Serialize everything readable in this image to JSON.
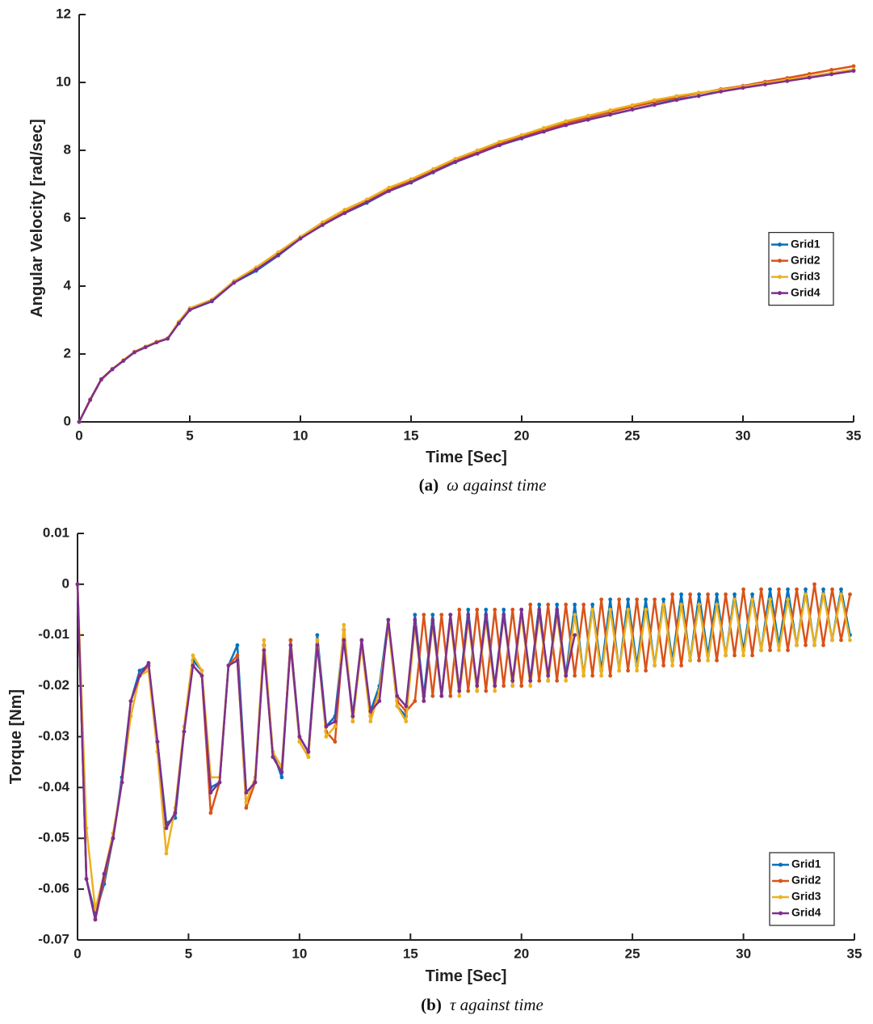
{
  "chart_data": [
    {
      "type": "line",
      "xlabel": "Time [Sec]",
      "ylabel": "Angular Velocity [rad/sec]",
      "caption_label": "(a)",
      "caption": "ω  against time",
      "xlim": [
        0,
        35
      ],
      "ylim": [
        0,
        12
      ],
      "xticks": [
        0,
        5,
        10,
        15,
        20,
        25,
        30,
        35
      ],
      "yticks": [
        0,
        2,
        4,
        6,
        8,
        10,
        12
      ],
      "grid": false,
      "legend": "center right",
      "x": [
        0,
        0.5,
        1,
        1.5,
        2,
        2.5,
        3,
        3.5,
        4,
        4.5,
        5,
        6,
        7,
        8,
        9,
        10,
        11,
        12,
        13,
        14,
        15,
        16,
        17,
        18,
        19,
        20,
        21,
        22,
        23,
        24,
        25,
        26,
        27,
        28,
        29,
        30,
        31,
        32,
        33,
        34,
        35
      ],
      "series": [
        {
          "name": "Grid1",
          "color": "#0072BD",
          "values": [
            0,
            0.65,
            1.25,
            1.55,
            1.8,
            2.05,
            2.2,
            2.35,
            2.45,
            2.9,
            3.3,
            3.55,
            4.1,
            4.45,
            4.9,
            5.4,
            5.8,
            6.15,
            6.45,
            6.8,
            7.05,
            7.35,
            7.65,
            7.9,
            8.15,
            8.35,
            8.55,
            8.75,
            8.9,
            9.05,
            9.2,
            9.35,
            9.5,
            9.6,
            9.75,
            9.85,
            9.95,
            10.05,
            10.15,
            10.25,
            10.35
          ]
        },
        {
          "name": "Grid2",
          "color": "#D95319",
          "values": [
            0,
            0.66,
            1.26,
            1.56,
            1.8,
            2.06,
            2.2,
            2.36,
            2.46,
            2.92,
            3.32,
            3.58,
            4.12,
            4.5,
            4.95,
            5.42,
            5.82,
            6.18,
            6.5,
            6.85,
            7.1,
            7.4,
            7.7,
            7.95,
            8.2,
            8.4,
            8.6,
            8.8,
            8.96,
            9.12,
            9.28,
            9.42,
            9.56,
            9.68,
            9.8,
            9.9,
            10.02,
            10.13,
            10.25,
            10.37,
            10.48
          ]
        },
        {
          "name": "Grid3",
          "color": "#EDB120",
          "values": [
            0,
            0.64,
            1.24,
            1.55,
            1.82,
            2.07,
            2.22,
            2.36,
            2.46,
            2.95,
            3.35,
            3.6,
            4.15,
            4.55,
            5.0,
            5.45,
            5.88,
            6.25,
            6.55,
            6.9,
            7.15,
            7.45,
            7.75,
            8.0,
            8.25,
            8.45,
            8.66,
            8.86,
            9.02,
            9.18,
            9.33,
            9.48,
            9.6,
            9.7,
            9.78,
            9.88,
            9.98,
            10.08,
            10.18,
            10.28,
            10.38
          ]
        },
        {
          "name": "Grid4",
          "color": "#7E2F8E",
          "values": [
            0,
            0.65,
            1.25,
            1.55,
            1.8,
            2.05,
            2.2,
            2.34,
            2.45,
            2.9,
            3.3,
            3.56,
            4.1,
            4.48,
            4.92,
            5.4,
            5.8,
            6.15,
            6.47,
            6.8,
            7.06,
            7.36,
            7.66,
            7.9,
            8.15,
            8.36,
            8.55,
            8.74,
            8.9,
            9.05,
            9.2,
            9.34,
            9.48,
            9.6,
            9.73,
            9.84,
            9.94,
            10.04,
            10.14,
            10.24,
            10.34
          ]
        }
      ]
    },
    {
      "type": "line",
      "xlabel": "Time [Sec]",
      "ylabel": "Torque [Nm]",
      "caption_label": "(b)",
      "caption": "τ  against time",
      "xlim": [
        0,
        35
      ],
      "ylim": [
        -0.07,
        0.01
      ],
      "xticks": [
        0,
        5,
        10,
        15,
        20,
        25,
        30,
        35
      ],
      "yticks": [
        -0.07,
        -0.06,
        -0.05,
        -0.04,
        -0.03,
        -0.02,
        -0.01,
        0,
        0.01
      ],
      "grid": false,
      "legend": "lower right",
      "x": [
        0,
        0.4,
        0.8,
        1.2,
        1.6,
        2,
        2.4,
        2.8,
        3.2,
        3.6,
        4,
        4.4,
        4.8,
        5.2,
        5.6,
        6,
        6.4,
        6.8,
        7.2,
        7.6,
        8,
        8.4,
        8.8,
        9.2,
        9.6,
        10,
        10.4,
        10.8,
        11.2,
        11.6,
        12,
        12.4,
        12.8,
        13.2,
        13.6,
        14,
        14.4,
        14.8,
        15.2,
        15.6,
        16,
        16.4,
        16.8,
        17.2,
        17.6,
        18,
        18.4,
        18.8,
        19.2,
        19.6,
        20,
        20.4,
        20.8,
        21.2,
        21.6,
        22,
        22.4,
        22.8,
        23.2,
        23.6,
        24,
        24.4,
        24.8,
        25.2,
        25.6,
        26,
        26.4,
        26.8,
        27.2,
        27.6,
        28,
        28.4,
        28.8,
        29.2,
        29.6,
        30,
        30.4,
        30.8,
        31.2,
        31.6,
        32,
        32.4,
        32.8,
        33.2,
        33.6,
        34,
        34.4,
        34.8
      ],
      "series": [
        {
          "name": "Grid1",
          "color": "#0072BD",
          "values": [
            0,
            -0.058,
            -0.065,
            -0.059,
            -0.05,
            -0.038,
            -0.023,
            -0.017,
            -0.016,
            -0.031,
            -0.047,
            -0.046,
            -0.029,
            -0.015,
            -0.017,
            -0.04,
            -0.039,
            -0.016,
            -0.012,
            -0.041,
            -0.039,
            -0.012,
            -0.033,
            -0.038,
            -0.011,
            -0.03,
            -0.033,
            -0.01,
            -0.028,
            -0.026,
            -0.009,
            -0.026,
            -0.011,
            -0.025,
            -0.02,
            -0.007,
            -0.024,
            -0.026,
            -0.006,
            -0.022,
            -0.006,
            -0.022,
            -0.006,
            -0.021,
            -0.005,
            -0.021,
            -0.005,
            -0.02,
            -0.005,
            -0.02,
            -0.005,
            -0.019,
            -0.004,
            -0.019,
            -0.004,
            -0.018,
            -0.004,
            -0.018,
            -0.004,
            -0.017,
            -0.003,
            -0.017,
            -0.003,
            -0.016,
            -0.003,
            -0.016,
            -0.003,
            -0.015,
            -0.002,
            -0.015,
            -0.002,
            -0.014,
            -0.002,
            -0.014,
            -0.002,
            -0.013,
            -0.002,
            -0.013,
            -0.001,
            -0.012,
            -0.001,
            -0.012,
            -0.001,
            -0.012,
            -0.001,
            -0.011,
            -0.001,
            -0.01
          ]
        },
        {
          "name": "Grid2",
          "color": "#D95319",
          "values": [
            0,
            -0.058,
            -0.066,
            -0.058,
            -0.05,
            -0.039,
            -0.023,
            -0.018,
            -0.016,
            -0.031,
            -0.048,
            -0.045,
            -0.029,
            -0.016,
            -0.018,
            -0.045,
            -0.039,
            -0.016,
            -0.014,
            -0.044,
            -0.039,
            -0.012,
            -0.034,
            -0.037,
            -0.011,
            -0.031,
            -0.034,
            -0.011,
            -0.029,
            -0.031,
            -0.009,
            -0.027,
            -0.011,
            -0.026,
            -0.021,
            -0.008,
            -0.023,
            -0.025,
            -0.023,
            -0.006,
            -0.022,
            -0.006,
            -0.022,
            -0.005,
            -0.021,
            -0.005,
            -0.021,
            -0.005,
            -0.02,
            -0.005,
            -0.02,
            -0.004,
            -0.019,
            -0.004,
            -0.019,
            -0.004,
            -0.018,
            -0.004,
            -0.018,
            -0.003,
            -0.018,
            -0.003,
            -0.017,
            -0.003,
            -0.017,
            -0.003,
            -0.016,
            -0.002,
            -0.016,
            -0.002,
            -0.015,
            -0.002,
            -0.015,
            -0.002,
            -0.014,
            -0.001,
            -0.014,
            -0.001,
            -0.013,
            -0.001,
            -0.013,
            -0.001,
            -0.012,
            0,
            -0.012,
            -0.001,
            -0.011,
            -0.002
          ]
        },
        {
          "name": "Grid3",
          "color": "#EDB120",
          "values": [
            0,
            -0.048,
            -0.064,
            -0.057,
            -0.049,
            -0.039,
            -0.026,
            -0.018,
            -0.017,
            -0.033,
            -0.053,
            -0.044,
            -0.028,
            -0.014,
            -0.017,
            -0.038,
            -0.038,
            -0.016,
            -0.015,
            -0.043,
            -0.038,
            -0.011,
            -0.033,
            -0.036,
            -0.012,
            -0.031,
            -0.034,
            -0.011,
            -0.03,
            -0.028,
            -0.008,
            -0.027,
            -0.012,
            -0.027,
            -0.021,
            -0.008,
            -0.024,
            -0.027,
            -0.008,
            -0.023,
            -0.008,
            -0.022,
            -0.007,
            -0.022,
            -0.007,
            -0.021,
            -0.007,
            -0.021,
            -0.006,
            -0.02,
            -0.006,
            -0.02,
            -0.006,
            -0.019,
            -0.006,
            -0.019,
            -0.006,
            -0.018,
            -0.005,
            -0.018,
            -0.005,
            -0.017,
            -0.005,
            -0.017,
            -0.005,
            -0.016,
            -0.004,
            -0.016,
            -0.004,
            -0.015,
            -0.004,
            -0.015,
            -0.004,
            -0.014,
            -0.003,
            -0.014,
            -0.003,
            -0.013,
            -0.003,
            -0.013,
            -0.003,
            -0.012,
            -0.002,
            -0.012,
            -0.002,
            -0.011,
            -0.002,
            -0.011
          ]
        },
        {
          "name": "Grid4",
          "color": "#7E2F8E",
          "values": [
            0,
            -0.058,
            -0.066,
            -0.057,
            -0.05,
            -0.039,
            -0.023,
            -0.018,
            -0.0155,
            -0.031,
            -0.048,
            -0.045,
            -0.029,
            -0.016,
            -0.018,
            -0.041,
            -0.039,
            -0.016,
            -0.015,
            -0.041,
            -0.039,
            -0.013,
            -0.034,
            -0.037,
            -0.012,
            -0.03,
            -0.033,
            -0.012,
            -0.028,
            -0.027,
            -0.011,
            -0.026,
            -0.011,
            -0.025,
            -0.023,
            -0.007,
            -0.022,
            -0.024,
            -0.007,
            -0.023,
            -0.007,
            -0.022,
            -0.006,
            -0.021,
            -0.006,
            -0.02,
            -0.006,
            -0.02,
            -0.006,
            -0.019,
            -0.005,
            -0.019,
            -0.005,
            -0.018,
            -0.005,
            -0.018,
            -0.01,
            null,
            null,
            null,
            null,
            null,
            null,
            null,
            null,
            null,
            null,
            null,
            null,
            null,
            null,
            null,
            null,
            null,
            null,
            null,
            null,
            null,
            null,
            null,
            null,
            null,
            null,
            null,
            null,
            null,
            null,
            null
          ]
        }
      ]
    }
  ]
}
